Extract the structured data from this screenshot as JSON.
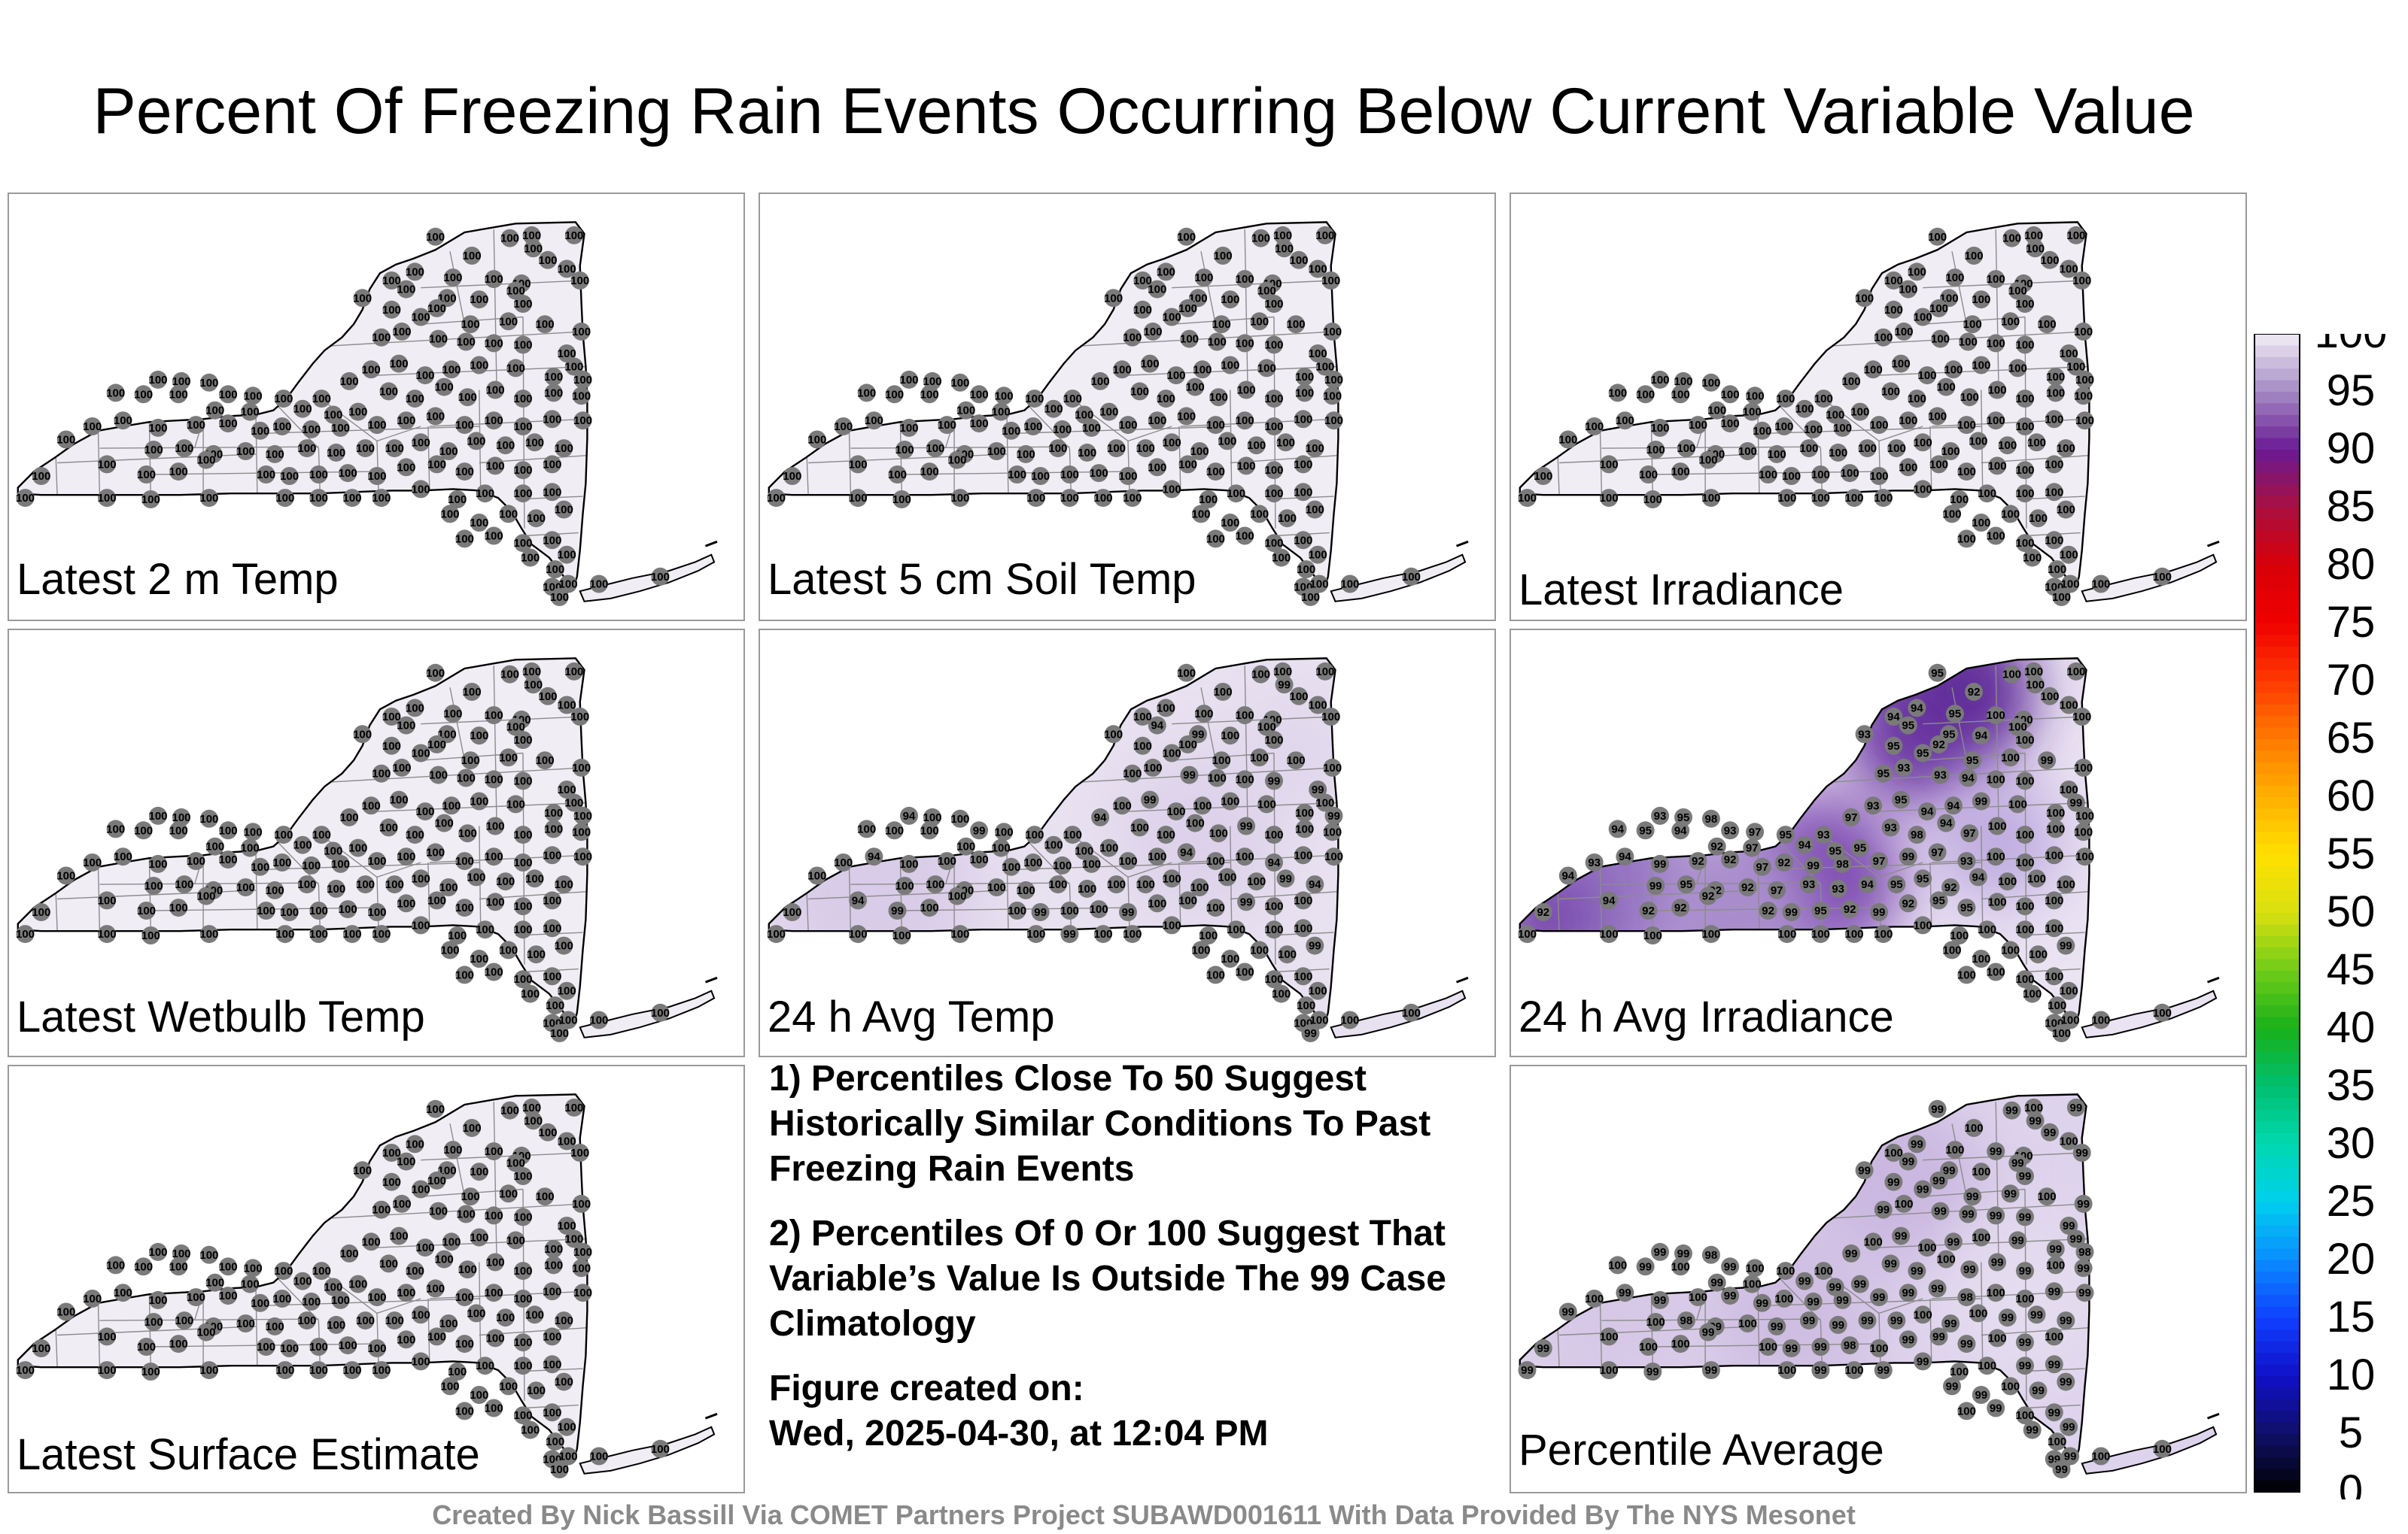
{
  "title": "Percent Of Freezing Rain Events Occurring Below Current Variable Value",
  "colorbar": {
    "unit_label": "%",
    "ticks": [
      "100",
      "95",
      "90",
      "85",
      "80",
      "75",
      "70",
      "65",
      "60",
      "55",
      "50",
      "45",
      "40",
      "35",
      "30",
      "25",
      "20",
      "15",
      "10",
      "5",
      "0"
    ]
  },
  "panels": [
    {
      "label": "Latest 2 m Temp",
      "shading": "uniform100"
    },
    {
      "label": "Latest 5 cm Soil Temp",
      "shading": "uniform100"
    },
    {
      "label": "Latest Irradiance",
      "shading": "uniform100"
    },
    {
      "label": "Latest Wetbulb Temp",
      "shading": "uniform100"
    },
    {
      "label": "24 h Avg Temp",
      "shading": "light99"
    },
    {
      "label": "24 h Avg Irradiance",
      "shading": "dark92"
    },
    {
      "label": "Latest Surface Estimate",
      "shading": "uniform100"
    },
    {
      "label": "Percentile Average",
      "shading": "mid99"
    }
  ],
  "station_values": {
    "uniform100": "100",
    "light99": [
      "99",
      "94"
    ],
    "dark92": [
      "92",
      "93",
      "94",
      "95",
      "97",
      "98",
      "99"
    ],
    "mid99": [
      "99",
      "98"
    ]
  },
  "notes": [
    "1) Percentiles Close To 50 Suggest Historically Similar Conditions To Past Freezing Rain Events",
    "2) Percentiles Of 0 Or 100 Suggest That Variable’s Value Is Outside The 99 Case Climatology"
  ],
  "created_label": "Figure created on:",
  "created_date": "Wed, 2025-04-30, at 12:04 PM",
  "footer": "Created By Nick Bassill Via COMET Partners Project SUBAWD001611 With Data Provided By The NYS Mesonet"
}
